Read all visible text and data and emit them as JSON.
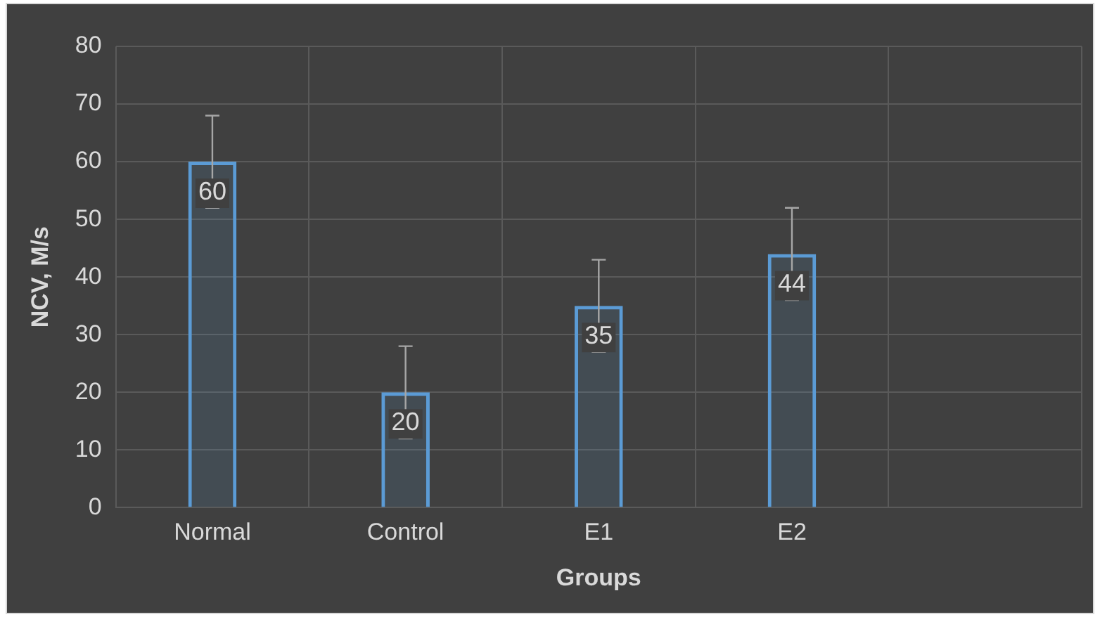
{
  "chart_data": {
    "type": "bar",
    "xlabel": "Groups",
    "ylabel": "NCV, M/s",
    "categories": [
      "Normal",
      "Control",
      "E1",
      "E2",
      null
    ],
    "values": [
      60,
      20,
      35,
      44,
      null
    ],
    "errors": [
      8,
      8,
      8,
      8,
      null
    ],
    "color": "#5b9bd5",
    "ylim": [
      0,
      80
    ],
    "yticks": [
      0,
      10,
      20,
      30,
      40,
      50,
      60,
      70,
      80
    ],
    "grid": true,
    "data_labels": true
  }
}
